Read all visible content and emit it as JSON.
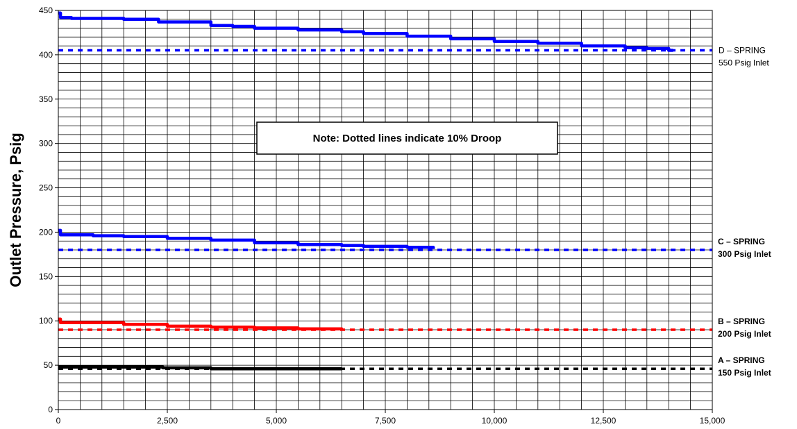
{
  "chart_data": {
    "type": "line",
    "title": "",
    "xlabel": "",
    "ylabel": "Outlet Pressure, Psig",
    "xlim": [
      0,
      15000
    ],
    "ylim": [
      0,
      450
    ],
    "x_ticks": [
      0,
      2500,
      5000,
      7500,
      10000,
      12500,
      15000
    ],
    "x_tick_labels": [
      "0",
      "2,500",
      "5,000",
      "7,500",
      "10,000",
      "12,500",
      "15,000"
    ],
    "y_ticks": [
      0,
      50,
      100,
      150,
      200,
      250,
      300,
      350,
      400,
      450
    ],
    "y_tick_labels": [
      "0",
      "50",
      "100",
      "150",
      "200",
      "250",
      "300",
      "350",
      "400",
      "450"
    ],
    "grid": true,
    "note": "Note:  Dotted lines indicate 10% Droop",
    "series": [
      {
        "label_lines": [
          "D – SPRING",
          "550 Psig Inlet"
        ],
        "label_bold": false,
        "color": "#0000ff",
        "x": [
          0,
          50,
          300,
          1500,
          2300,
          3500,
          4000,
          4500,
          5500,
          6500,
          7000,
          8000,
          9000,
          10000,
          11000,
          12000,
          13000,
          13500,
          14000,
          14100
        ],
        "y": [
          447,
          442,
          441,
          440,
          437,
          433,
          432,
          430,
          428,
          426,
          424,
          421,
          418,
          415,
          413,
          410,
          408,
          407,
          405,
          405
        ],
        "droop": 405
      },
      {
        "label_lines": [
          "C – SPRING",
          "300 Psig Inlet"
        ],
        "label_bold": true,
        "color": "#0000ff",
        "x": [
          0,
          50,
          800,
          1500,
          2500,
          3500,
          4500,
          5500,
          6500,
          7000,
          8000,
          8600
        ],
        "y": [
          202,
          197,
          196,
          195,
          193,
          191,
          188,
          186,
          185,
          184,
          183,
          181
        ],
        "droop": 180
      },
      {
        "label_lines": [
          "B – SPRING",
          "200 Psig Inlet"
        ],
        "label_bold": true,
        "color": "#ff0000",
        "x": [
          0,
          50,
          1500,
          2500,
          3500,
          4500,
          5500,
          6500
        ],
        "y": [
          102,
          98,
          96,
          94,
          93,
          92,
          91,
          90
        ],
        "droop": 90
      },
      {
        "label_lines": [
          "A – SPRING",
          "150 Psig Inlet"
        ],
        "label_bold": true,
        "color": "#000000",
        "x": [
          0,
          1200,
          2400,
          3500,
          5000,
          6400,
          6500
        ],
        "y": [
          48,
          48,
          47,
          46,
          46,
          46,
          47
        ],
        "droop": 46
      }
    ]
  }
}
